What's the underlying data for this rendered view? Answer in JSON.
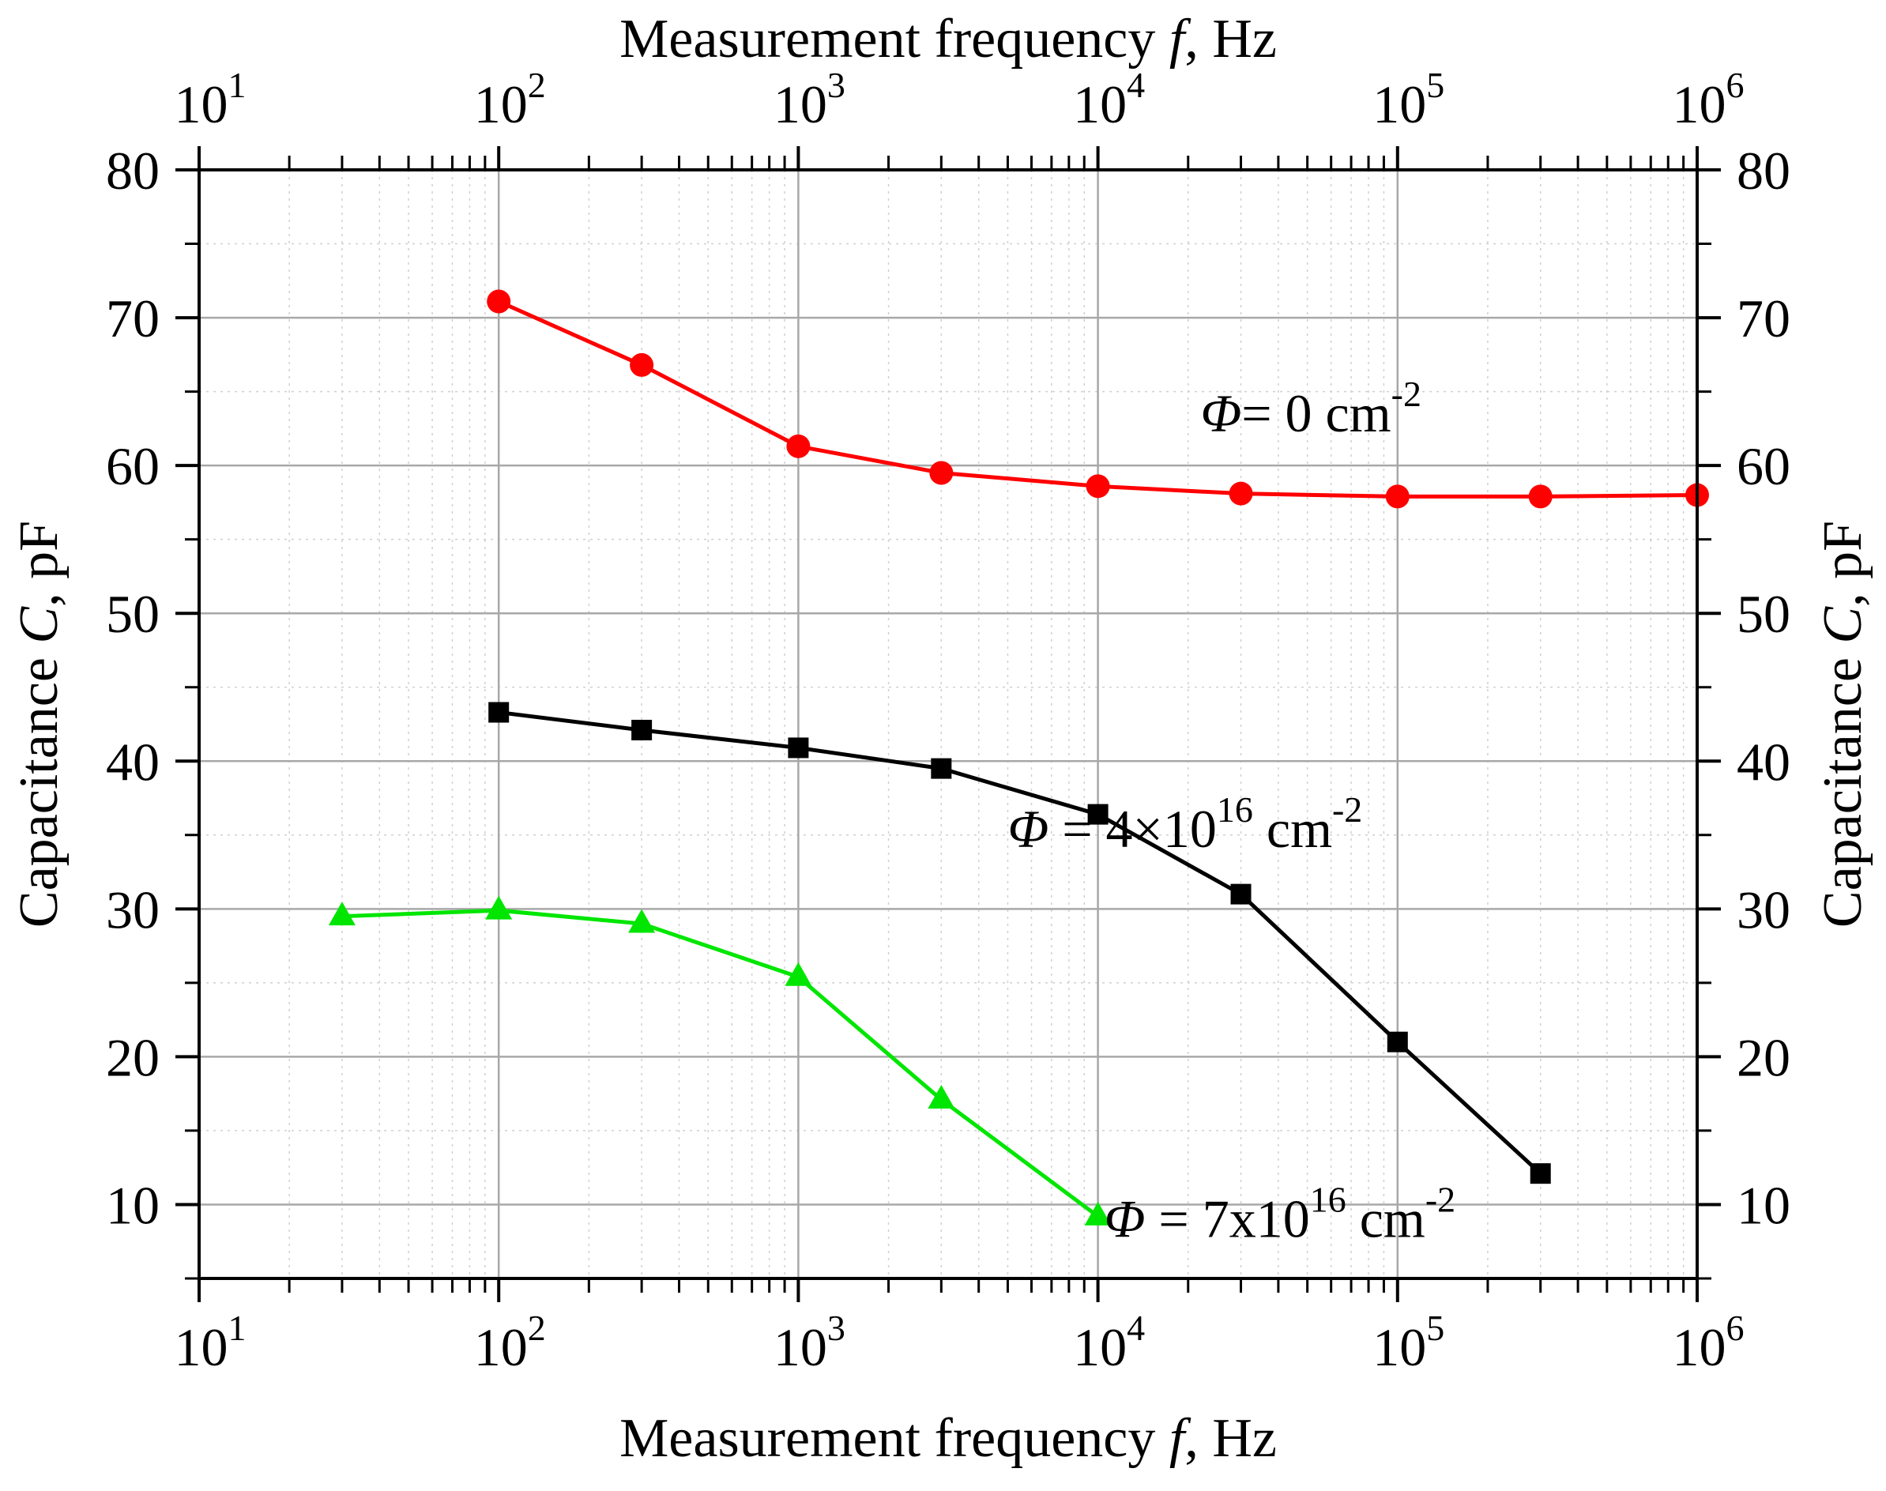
{
  "chart_data": {
    "type": "line",
    "x_scale": "log",
    "xlim": [
      10,
      1000000
    ],
    "ylim": [
      5,
      80
    ],
    "xlabel_bottom": "Measurement frequency f, Hz",
    "xlabel_top": "Measurement frequency f, Hz",
    "ylabel_left": "Capacitance C, pF",
    "ylabel_right": "Capacitance C, pF",
    "x_ticks": [
      {
        "value": 10,
        "base": "10",
        "exp": "1"
      },
      {
        "value": 100,
        "base": "10",
        "exp": "2"
      },
      {
        "value": 1000,
        "base": "10",
        "exp": "3"
      },
      {
        "value": 10000,
        "base": "10",
        "exp": "4"
      },
      {
        "value": 100000,
        "base": "10",
        "exp": "5"
      },
      {
        "value": 1000000,
        "base": "10",
        "exp": "6"
      }
    ],
    "y_ticks": [
      {
        "value": 10,
        "label": "10"
      },
      {
        "value": 20,
        "label": "20"
      },
      {
        "value": 30,
        "label": "30"
      },
      {
        "value": 40,
        "label": "40"
      },
      {
        "value": 50,
        "label": "50"
      },
      {
        "value": 60,
        "label": "60"
      },
      {
        "value": 70,
        "label": "70"
      },
      {
        "value": 80,
        "label": "80"
      }
    ],
    "grid": true,
    "series": [
      {
        "name": "Φ = 0 cm-2",
        "color": "#ff0000",
        "marker": "circle",
        "x": [
          100,
          300,
          1000,
          3000,
          10000,
          30000,
          100000,
          300000,
          1000000
        ],
        "y": [
          71.1,
          66.8,
          61.3,
          59.5,
          58.6,
          58.1,
          57.9,
          57.9,
          58.0
        ]
      },
      {
        "name": "Φ = 4×10^16 cm-2",
        "color": "#000000",
        "marker": "square",
        "x": [
          100,
          300,
          1000,
          3000,
          10000,
          30000,
          100000,
          300000
        ],
        "y": [
          43.3,
          42.1,
          40.9,
          39.5,
          36.4,
          31.0,
          21.0,
          12.1
        ]
      },
      {
        "name": "Φ = 7x10^16 cm-2",
        "color": "#00e600",
        "marker": "triangle",
        "x": [
          30,
          100,
          300,
          1000,
          3000,
          10000
        ],
        "y": [
          29.5,
          29.9,
          29.0,
          25.4,
          17.1,
          9.2
        ]
      }
    ],
    "annotations": [
      {
        "series": 0,
        "symbol": "Φ",
        "text": "= 0 cm",
        "exp": "-2",
        "near": "upper right, above red curve"
      },
      {
        "series": 1,
        "symbol": "Φ",
        "text": " = 4×10",
        "mid_exp": "16",
        "text2": " cm",
        "exp": "-2",
        "near": "right of black curve at 10^4–10^5 Hz"
      },
      {
        "series": 2,
        "symbol": "Φ",
        "text": " = 7x10",
        "mid_exp": "16",
        "text2": " cm",
        "exp": "-2",
        "near": "right of last green point"
      }
    ]
  }
}
